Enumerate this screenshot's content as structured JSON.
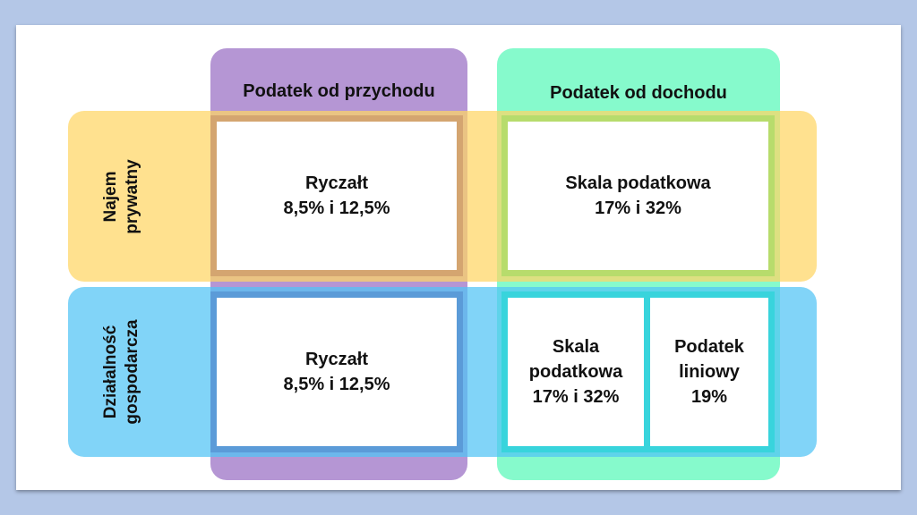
{
  "columns": [
    {
      "label": "Podatek od przychodu",
      "color": "#a078c8"
    },
    {
      "label": "Podatek od dochodu",
      "color": "#64f8be"
    }
  ],
  "rows": [
    {
      "label_lines": [
        "Najem",
        "prywatny"
      ],
      "color": "#ffd664"
    },
    {
      "label_lines": [
        "Działalność",
        "gospodarcza"
      ],
      "color": "#50c4f5"
    }
  ],
  "cells": {
    "najem_przychod": [
      "Ryczałt",
      "8,5% i 12,5%"
    ],
    "najem_dochod": [
      "Skala podatkowa",
      "17% i 32%"
    ],
    "dzialalnosc_przychod": [
      "Ryczałt",
      "8,5% i 12,5%"
    ],
    "dzialalnosc_dochod_skala": [
      "Skala",
      "podatkowa",
      "17% i 32%"
    ],
    "dzialalnosc_dochod_liniowy": [
      "Podatek",
      "liniowy",
      "19%"
    ]
  }
}
